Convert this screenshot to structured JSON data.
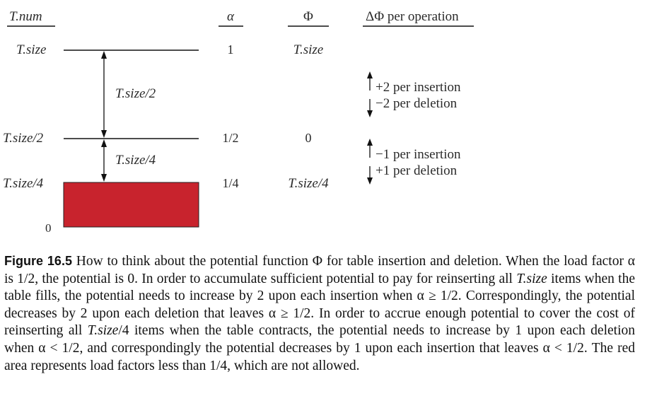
{
  "diagram": {
    "headers": {
      "tnum": "T.num",
      "alpha": "α",
      "phi": "Φ",
      "delta": "ΔΦ per operation"
    },
    "rows": [
      {
        "tnum": "T.size",
        "alpha": "1",
        "phi": "T.size"
      },
      {
        "tnum": "T.size/2",
        "alpha": "1/2",
        "phi": "0"
      },
      {
        "tnum": "T.size/4",
        "alpha": "1/4",
        "phi": "T.size/4"
      },
      {
        "tnum": "0"
      }
    ],
    "spans": {
      "upper": "T.size/2",
      "lower": "T.size/4"
    },
    "deltas": {
      "upper": {
        "line1": "+2 per insertion",
        "line2": "−2 per deletion"
      },
      "lower": {
        "line1": "−1 per insertion",
        "line2": "+1 per deletion"
      }
    },
    "colors": {
      "forbidden_region": "#c8232d"
    }
  },
  "caption": {
    "label": "Figure 16.5",
    "parts": [
      " How to think about the potential function Φ for table insertion and deletion. When the load factor α is 1/2, the potential is 0. In order to accumulate sufficient potential to pay for reinserting all ",
      "T.size",
      " items when the table fills, the potential needs to increase by 2 upon each insertion when α ≥ 1/2. Correspondingly, the potential decreases by 2 upon each deletion that leaves α ≥ 1/2. In order to accrue enough potential to cover the cost of reinserting all ",
      "T.size",
      "/4 items when the table contracts, the potential needs to increase by 1 upon each deletion when α < 1/2, and correspondingly the potential decreases by 1 upon each insertion that leaves α < 1/2. The red area represents load factors less than 1/4, which are not allowed."
    ]
  }
}
